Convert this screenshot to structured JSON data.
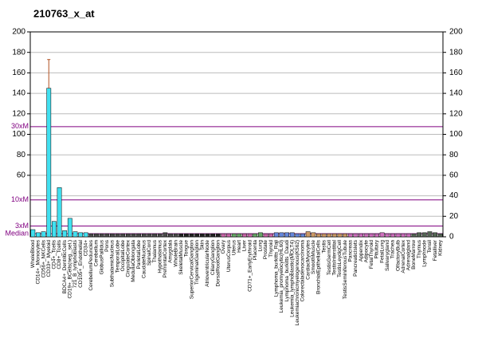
{
  "chart_data": {
    "type": "bar",
    "title": "210763_x_at",
    "categories": [
      "WholeBlood",
      "CD14+_Monocytes",
      "CD56+_NKCells",
      "CD33+_Myeloid",
      "CD4+_Tcells",
      "CD8+_Tcells",
      "BDCA4+_DentriticCells",
      "CD19+_BCells(neg._sel.)",
      "721_B_lymphoblasts",
      "CD105+_Endothelial",
      "CD34+",
      "CerebellumPeduncles",
      "Cerebellum",
      "GlobusPallidus",
      "Pons",
      "SubthalamicNucleus",
      "TemporalLobe",
      "OccipitalLobe",
      "CingulateCortex",
      "MedullaOblongata",
      "ParietalLobe",
      "CaudateNucleus",
      "SpinalCord",
      "Thalamus",
      "Hypothalamus",
      "PrefrontalCortex",
      "Amygdala",
      "WholeBrain",
      "SkeletalMuscle",
      "Tongue",
      "SuperiorCervicalGanglion",
      "TrigeminalGanglion",
      "Skin",
      "AtrioventricularNode",
      "CiliaryGanglion",
      "DorsalRootGanglion",
      "Ovary",
      "UterusCorpus",
      "Uterus",
      "Heart",
      "Liver",
      "CD71+_EarlyErythroid",
      "Placenta",
      "Lung",
      "Prostate",
      "Thyroid",
      "Lymphoma_burkitts_Raji",
      "Leukemia_promyelocytic(HL60)",
      "Lymphoma_burkitts_Daudi",
      "Leukemia_lymphoblastic(MOLT4)",
      "Leukemiachronicmyelogenous(K562)",
      "Colorectaladenocarcinoma",
      "CardiacMyocytes",
      "SmoothMuscle",
      "BronchialEpithelialCells",
      "Testis",
      "TestisGermCell",
      "TestisInterstitial",
      "TestisLeydigCell",
      "TestisSeminiferousTubule",
      "Pancreas",
      "PancreaticIslets",
      "Appendix",
      "Adipocyte",
      "FetalThyroid",
      "Pituitary",
      "FetalLung",
      "Salivarygland",
      "Trachea",
      "OlfactoryBulb",
      "AdrenalCortex",
      "Adrenalgland",
      "BoneMarrow",
      "Thymus",
      "Lymphnode",
      "Tonsil",
      "Fetalliver",
      "Kidney"
    ],
    "values": [
      7,
      4,
      5,
      145,
      15,
      48,
      6,
      18,
      5,
      4,
      4,
      3,
      3,
      3,
      3,
      3,
      3,
      3,
      3,
      3,
      3,
      3,
      3,
      3,
      3,
      4,
      3,
      3,
      3,
      3,
      3,
      3,
      3,
      3,
      3,
      3,
      3,
      3,
      3,
      3,
      3,
      3,
      3,
      4,
      3,
      3,
      4,
      4,
      4,
      4,
      3,
      3,
      5,
      4,
      3,
      3,
      3,
      3,
      3,
      3,
      3,
      3,
      3,
      3,
      3,
      3,
      4,
      3,
      3,
      3,
      3,
      3,
      3,
      4,
      4,
      5,
      4,
      3
    ],
    "errors": [
      null,
      null,
      null,
      28,
      null,
      null,
      null,
      null,
      null,
      null,
      null,
      null,
      null,
      null,
      null,
      null,
      null,
      null,
      null,
      null,
      null,
      null,
      null,
      null,
      null,
      null,
      null,
      null,
      null,
      null,
      null,
      null,
      null,
      null,
      null,
      null,
      null,
      null,
      null,
      null,
      null,
      null,
      null,
      null,
      null,
      null,
      null,
      null,
      null,
      null,
      null,
      null,
      null,
      null,
      null,
      null,
      null,
      null,
      null,
      null,
      null,
      null,
      null,
      null,
      null,
      null,
      null,
      null,
      null,
      null,
      null,
      null,
      null,
      null,
      null,
      null,
      null,
      null
    ],
    "colors": [
      "#40e0f0",
      "#40e0f0",
      "#40e0f0",
      "#40e0f0",
      "#40e0f0",
      "#40e0f0",
      "#40e0f0",
      "#40e0f0",
      "#40e0f0",
      "#40e0f0",
      "#40e0f0",
      "#4a4a4a",
      "#4a4a4a",
      "#4a4a4a",
      "#4a4a4a",
      "#4a4a4a",
      "#4a4a4a",
      "#4a4a4a",
      "#4a4a4a",
      "#4a4a4a",
      "#4a4a4a",
      "#4a4a4a",
      "#4a4a4a",
      "#4a4a4a",
      "#4a4a4a",
      "#4a4a4a",
      "#4a4a4a",
      "#4a4a4a",
      "#222222",
      "#222222",
      "#222222",
      "#222222",
      "#222222",
      "#222222",
      "#222222",
      "#222222",
      "#cc66aa",
      "#cc66aa",
      "#66aa66",
      "#66aa66",
      "#cc66aa",
      "#cc66aa",
      "#66aa66",
      "#66aa66",
      "#cc66aa",
      "#cc66aa",
      "#6688dd",
      "#6688dd",
      "#6688dd",
      "#6688dd",
      "#6688dd",
      "#6688dd",
      "#cc9966",
      "#cc9966",
      "#cc9966",
      "#cc9966",
      "#cc9966",
      "#cc9966",
      "#cc9966",
      "#cc9966",
      "#d070c0",
      "#d070c0",
      "#d070c0",
      "#d070c0",
      "#d070c0",
      "#d070c0",
      "#d070c0",
      "#d070c0",
      "#d070c0",
      "#d070c0",
      "#d070c0",
      "#d070c0",
      "#556655",
      "#556655",
      "#556655",
      "#556655",
      "#556655",
      "#556655"
    ],
    "ylim": [
      0,
      200
    ],
    "yticks": [
      60,
      80,
      100,
      120,
      140,
      160,
      180,
      200
    ],
    "y2lim": [
      0,
      200
    ],
    "y2ticks": [
      0,
      20,
      40,
      60,
      80,
      100,
      120,
      140,
      160,
      180,
      200
    ],
    "grid": true,
    "thresholds": [
      {
        "label": "30xM",
        "value": 107.5
      },
      {
        "label": "10xM",
        "value": 36
      },
      {
        "label": "3xM",
        "value": 10.5
      },
      {
        "label": "Median",
        "value": 3
      }
    ]
  }
}
